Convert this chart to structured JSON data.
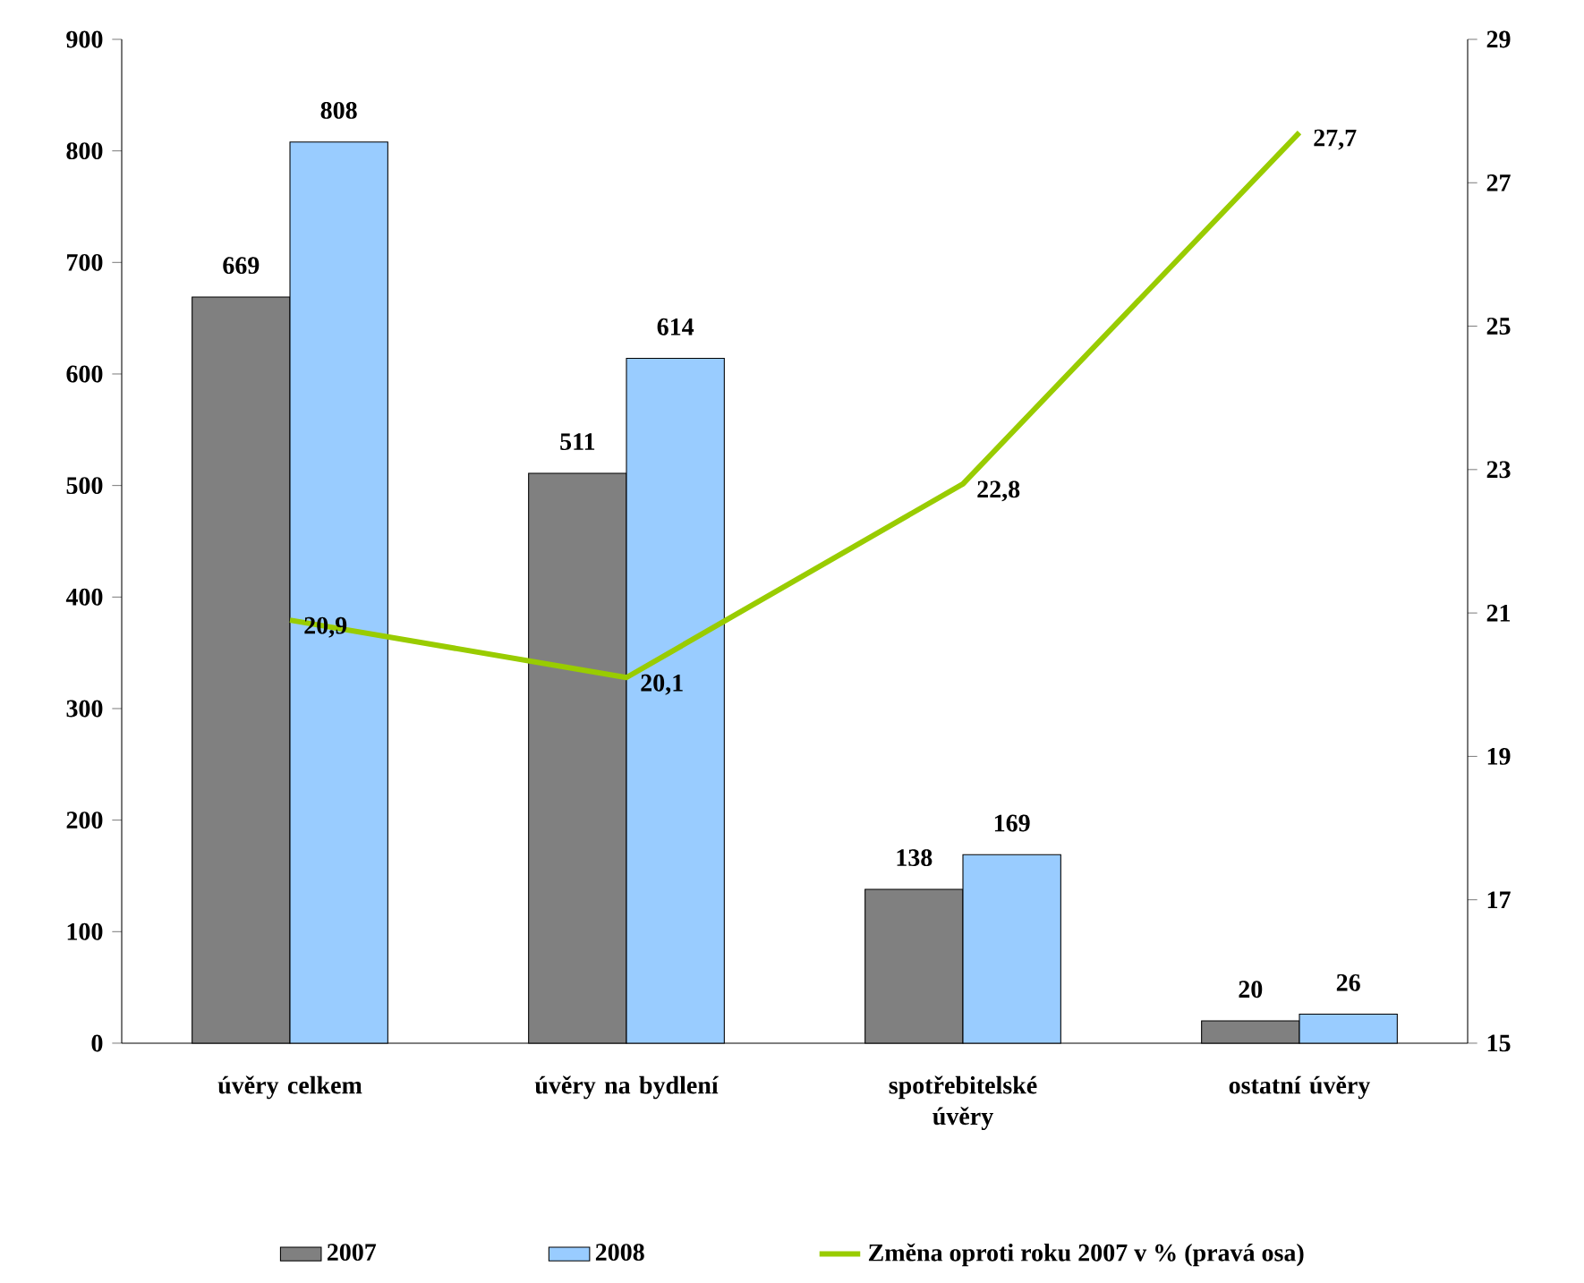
{
  "chart_data": {
    "type": "bar",
    "categories": [
      "úvěry celkem",
      "úvěry na bydlení",
      "spotřebitelské úvěry",
      "ostatní úvěry"
    ],
    "series": [
      {
        "name": "2007",
        "color": "#808080",
        "values": [
          669,
          511,
          138,
          20
        ],
        "value_labels": [
          "669",
          "511",
          "138",
          "20"
        ]
      },
      {
        "name": "2008",
        "color": "#99ccff",
        "values": [
          808,
          614,
          169,
          26
        ],
        "value_labels": [
          "808",
          "614",
          "169",
          "26"
        ]
      },
      {
        "name": "Změna oproti roku 2007 v % (pravá osa)",
        "type": "line",
        "axis": "y2",
        "color": "#99cc00",
        "values": [
          20.9,
          20.1,
          22.8,
          27.7
        ],
        "value_labels": [
          "20,9",
          "20,1",
          "22,8",
          "27,7"
        ]
      }
    ],
    "ylim": [
      0,
      900
    ],
    "yticks": [
      0,
      100,
      200,
      300,
      400,
      500,
      600,
      700,
      800,
      900
    ],
    "y2lim": [
      15,
      29
    ],
    "y2ticks": [
      15,
      17,
      19,
      21,
      23,
      25,
      27,
      29
    ],
    "legend": "bottom"
  }
}
